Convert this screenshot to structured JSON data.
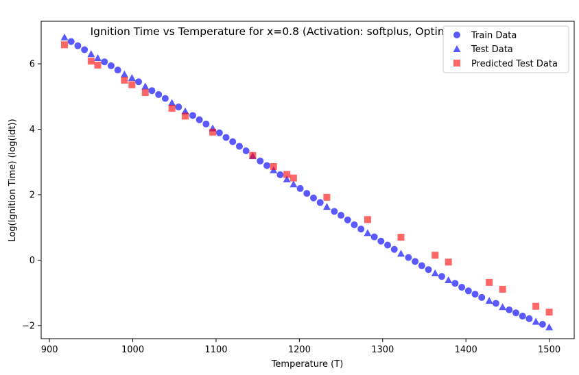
{
  "chart_data": {
    "type": "scatter",
    "title": "Ignition Time vs Temperature for x=0.8 (Activation: softplus, Optimizer: RMSprop)",
    "xlabel": "Temperature (T)",
    "ylabel": "Log(Ignition Time) (log(idt))",
    "xlim": [
      890,
      1530
    ],
    "ylim": [
      -2.4,
      7.3
    ],
    "xticks": [
      900,
      1000,
      1100,
      1200,
      1300,
      1400,
      1500
    ],
    "yticks": [
      -2,
      0,
      2,
      4,
      6
    ],
    "legend_position": "top-right",
    "grid": false,
    "series": [
      {
        "name": "Train Data",
        "marker": "circle",
        "color": "#0000ff",
        "points": [
          [
            926,
            6.68
          ],
          [
            934,
            6.55
          ],
          [
            942,
            6.43
          ],
          [
            966,
            6.06
          ],
          [
            974,
            5.94
          ],
          [
            982,
            5.81
          ],
          [
            1007,
            5.45
          ],
          [
            1023,
            5.18
          ],
          [
            1031,
            5.06
          ],
          [
            1039,
            4.94
          ],
          [
            1055,
            4.68
          ],
          [
            1072,
            4.42
          ],
          [
            1080,
            4.29
          ],
          [
            1088,
            4.16
          ],
          [
            1104,
            3.89
          ],
          [
            1112,
            3.75
          ],
          [
            1120,
            3.62
          ],
          [
            1128,
            3.48
          ],
          [
            1136,
            3.34
          ],
          [
            1153,
            3.03
          ],
          [
            1161,
            2.89
          ],
          [
            1177,
            2.61
          ],
          [
            1201,
            2.19
          ],
          [
            1209,
            2.04
          ],
          [
            1217,
            1.9
          ],
          [
            1225,
            1.76
          ],
          [
            1242,
            1.49
          ],
          [
            1250,
            1.37
          ],
          [
            1258,
            1.23
          ],
          [
            1266,
            1.08
          ],
          [
            1274,
            0.95
          ],
          [
            1290,
            0.71
          ],
          [
            1298,
            0.58
          ],
          [
            1306,
            0.46
          ],
          [
            1314,
            0.33
          ],
          [
            1331,
            0.08
          ],
          [
            1339,
            -0.04
          ],
          [
            1347,
            -0.17
          ],
          [
            1355,
            -0.29
          ],
          [
            1371,
            -0.5
          ],
          [
            1387,
            -0.71
          ],
          [
            1395,
            -0.83
          ],
          [
            1403,
            -0.94
          ],
          [
            1411,
            -1.04
          ],
          [
            1419,
            -1.14
          ],
          [
            1436,
            -1.32
          ],
          [
            1452,
            -1.52
          ],
          [
            1460,
            -1.61
          ],
          [
            1468,
            -1.71
          ],
          [
            1476,
            -1.79
          ],
          [
            1492,
            -1.96
          ]
        ]
      },
      {
        "name": "Test Data",
        "marker": "triangle",
        "color": "#0000ff",
        "points": [
          [
            918,
            6.81
          ],
          [
            950,
            6.3
          ],
          [
            958,
            6.18
          ],
          [
            990,
            5.68
          ],
          [
            999,
            5.57
          ],
          [
            1015,
            5.31
          ],
          [
            1047,
            4.81
          ],
          [
            1063,
            4.55
          ],
          [
            1096,
            4.03
          ],
          [
            1144,
            3.18
          ],
          [
            1169,
            2.75
          ],
          [
            1185,
            2.47
          ],
          [
            1193,
            2.32
          ],
          [
            1233,
            1.63
          ],
          [
            1282,
            0.83
          ],
          [
            1322,
            0.2
          ],
          [
            1363,
            -0.4
          ],
          [
            1379,
            -0.61
          ],
          [
            1428,
            -1.24
          ],
          [
            1444,
            -1.43
          ],
          [
            1484,
            -1.88
          ],
          [
            1500,
            -2.05
          ]
        ]
      },
      {
        "name": "Predicted Test Data",
        "marker": "square",
        "color": "#ff0000",
        "points": [
          [
            918,
            6.58
          ],
          [
            950,
            6.08
          ],
          [
            958,
            5.96
          ],
          [
            990,
            5.5
          ],
          [
            999,
            5.36
          ],
          [
            1015,
            5.12
          ],
          [
            1047,
            4.64
          ],
          [
            1063,
            4.4
          ],
          [
            1096,
            3.91
          ],
          [
            1144,
            3.2
          ],
          [
            1169,
            2.86
          ],
          [
            1185,
            2.62
          ],
          [
            1193,
            2.51
          ],
          [
            1233,
            1.92
          ],
          [
            1282,
            1.24
          ],
          [
            1322,
            0.7
          ],
          [
            1363,
            0.15
          ],
          [
            1379,
            -0.06
          ],
          [
            1428,
            -0.68
          ],
          [
            1444,
            -0.89
          ],
          [
            1484,
            -1.41
          ],
          [
            1500,
            -1.59
          ]
        ]
      }
    ]
  }
}
